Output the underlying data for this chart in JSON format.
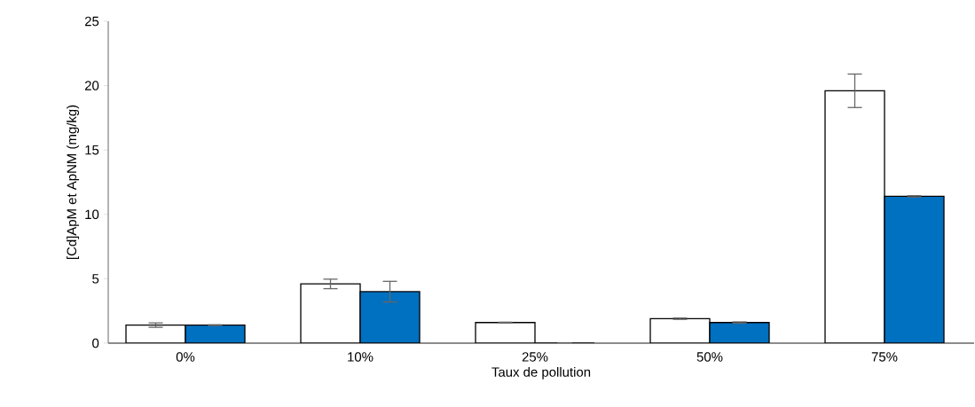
{
  "chart_data": {
    "type": "bar",
    "xlabel": "Taux de pollution",
    "ylabel": "[Cd]ApM et ApNM (mg/kg)",
    "categories": [
      "0%",
      "10%",
      "25%",
      "50%",
      "75%"
    ],
    "series": [
      {
        "color": "#ffffff",
        "values": [
          1.4,
          4.6,
          1.6,
          1.9,
          19.6
        ],
        "errors": [
          0.17,
          0.37,
          0.03,
          0.05,
          1.3
        ]
      },
      {
        "color": "#0070c0",
        "values": [
          1.4,
          4.0,
          0,
          1.6,
          11.4
        ],
        "errors": [
          0.03,
          0.8,
          null,
          0.05,
          0.05
        ]
      }
    ],
    "ylim": [
      0,
      25
    ],
    "yticks": [
      0,
      5,
      10,
      15,
      20,
      25
    ],
    "grid": false
  }
}
